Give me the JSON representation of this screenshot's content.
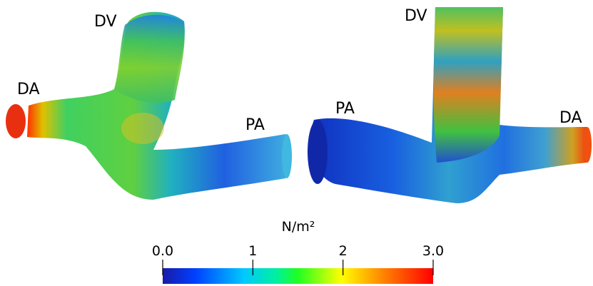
{
  "views": [
    {
      "labels": [
        "DV",
        "DA",
        "PA"
      ]
    },
    {
      "labels": [
        "DV",
        "PA",
        "DA"
      ]
    }
  ],
  "colorbar": {
    "title": "N/m²",
    "range": [
      0,
      3
    ],
    "ticks": [
      {
        "value": 0,
        "label": "0.0"
      },
      1,
      2,
      {
        "value": 3,
        "label": "3.0"
      }
    ]
  }
}
